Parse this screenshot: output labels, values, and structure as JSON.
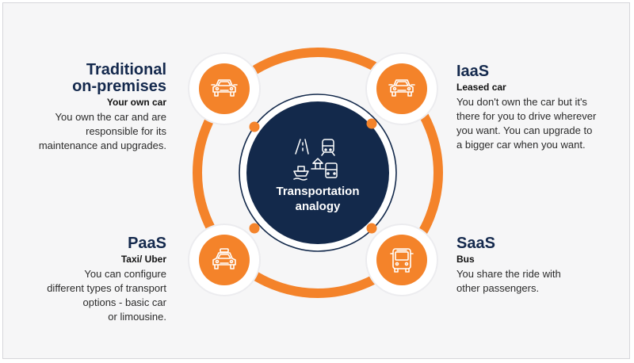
{
  "colors": {
    "orange": "#f4832a",
    "navy": "#13294b",
    "background": "#f6f6f7"
  },
  "center": {
    "title_line1": "Transportation",
    "title_line2": "analogy",
    "icon": "transport-modes-icon"
  },
  "nodes": {
    "traditional": {
      "title_line1": "Traditional",
      "title_line2": "on-premises",
      "subtitle": "Your own car",
      "desc_lines": [
        "You own the car and are",
        "responsible for its",
        "maintenance and upgrades."
      ],
      "icon": "car-icon"
    },
    "iaas": {
      "title": "IaaS",
      "subtitle": "Leased car",
      "desc_lines": [
        "You don't own the car but it's",
        "there for you to drive wherever",
        "you want. You can upgrade to",
        "a bigger car when you want."
      ],
      "icon": "car-icon"
    },
    "paas": {
      "title": "PaaS",
      "subtitle": "Taxi/ Uber",
      "desc_lines": [
        "You can configure",
        "different types of transport",
        "options - basic car",
        "or limousine."
      ],
      "icon": "taxi-icon"
    },
    "saas": {
      "title": "SaaS",
      "subtitle": "Bus",
      "desc_lines": [
        "You share the ride with",
        "other passengers."
      ],
      "icon": "bus-icon"
    }
  }
}
